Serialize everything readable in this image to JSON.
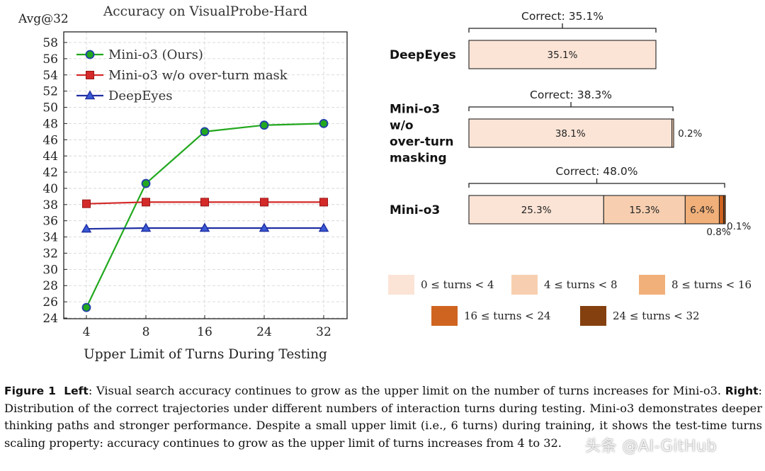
{
  "chart_data": [
    {
      "type": "line",
      "title": "Accuracy on VisualProbe-Hard",
      "ylabel": "Avg@32",
      "xlabel": "Upper Limit of Turns During Testing",
      "categories": [
        "4",
        "8",
        "16",
        "24",
        "32"
      ],
      "ylim": [
        24,
        58
      ],
      "yticks": [
        24,
        26,
        28,
        30,
        32,
        34,
        36,
        38,
        40,
        42,
        44,
        46,
        48,
        50,
        52,
        54,
        56,
        58
      ],
      "grid": true,
      "legend_position": "top-left",
      "series": [
        {
          "name": "Mini-o3 (Ours)",
          "values": [
            25.3,
            40.6,
            47.0,
            47.8,
            48.0
          ],
          "color": "#22a81e",
          "marker": "circle"
        },
        {
          "name": "Mini-o3 w/o over-turn mask",
          "values": [
            38.1,
            38.3,
            38.3,
            38.3,
            38.3
          ],
          "color": "#d42a2a",
          "marker": "square"
        },
        {
          "name": "DeepEyes",
          "values": [
            35.0,
            35.1,
            35.1,
            35.1,
            35.1
          ],
          "color": "#1f2fa3",
          "marker": "triangle"
        }
      ]
    },
    {
      "type": "bar",
      "orientation": "horizontal-stacked",
      "models": [
        {
          "label": "DeepEyes",
          "label_lines": [
            "DeepEyes"
          ],
          "correct_label": "Correct: 35.1%",
          "correct": 35.1,
          "segments": [
            35.1,
            0,
            0,
            0,
            0
          ],
          "segment_labels": [
            "35.1%",
            "",
            "",
            "",
            ""
          ]
        },
        {
          "label": "Mini-o3 w/o over-turn masking",
          "label_lines": [
            "Mini-o3",
            "w/o",
            "over-turn",
            "masking"
          ],
          "correct_label": "Correct: 38.3%",
          "correct": 38.3,
          "segments": [
            38.1,
            0.2,
            0,
            0,
            0
          ],
          "segment_labels": [
            "38.1%",
            "0.2%",
            "",
            "",
            ""
          ]
        },
        {
          "label": "Mini-o3",
          "label_lines": [
            "Mini-o3"
          ],
          "correct_label": "Correct: 48.0%",
          "correct": 48.0,
          "segments": [
            25.3,
            15.3,
            6.4,
            0.8,
            0.1
          ],
          "segment_labels": [
            "25.3%",
            "15.3%",
            "6.4%",
            "0.8%",
            "0.1%"
          ]
        }
      ],
      "legend": [
        {
          "label": "0 ≤ turns < 4",
          "color": "#fbe4d6"
        },
        {
          "label": "4 ≤ turns < 8",
          "color": "#f7cfb0"
        },
        {
          "label": "8 ≤ turns < 16",
          "color": "#f1b07a"
        },
        {
          "label": "16 ≤ turns < 24",
          "color": "#cf6420"
        },
        {
          "label": "24 ≤ turns < 32",
          "color": "#84400f"
        }
      ]
    }
  ],
  "caption": {
    "fig_label": "Figure 1",
    "left_label": "Left",
    "left_text": ": Visual search accuracy continues to grow as the upper limit on the number of turns increases for Mini-o3. ",
    "right_label": "Right",
    "right_text": ": Distribution of the correct trajectories under different numbers of interaction turns during testing. Mini-o3 demonstrates deeper thinking paths and stronger performance. Despite a small upper limit (i.e., 6 turns) during training, it shows the test-time turns scaling property: accuracy continues to grow as the upper limit of turns increases from 4 to 32."
  },
  "watermark": "头条 @AI-GitHub"
}
